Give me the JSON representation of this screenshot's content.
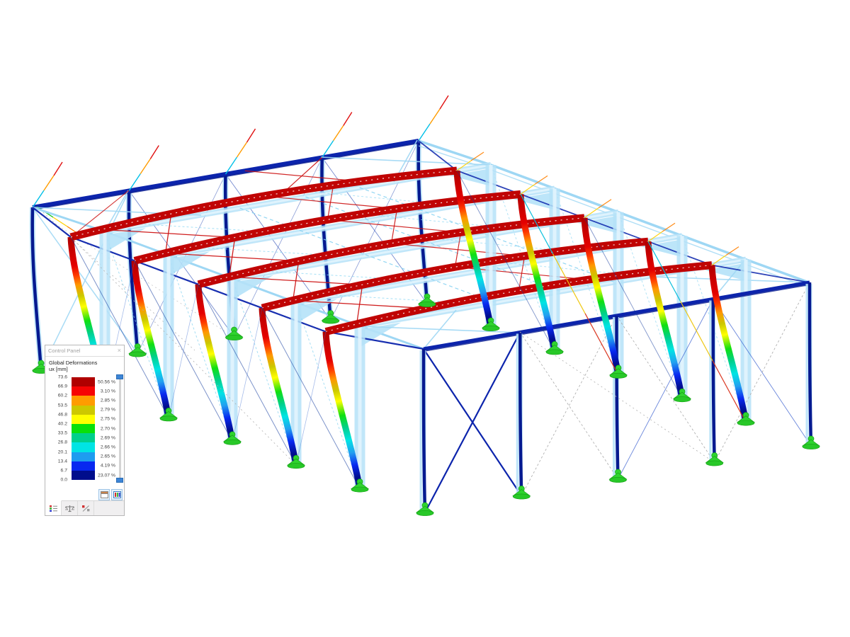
{
  "app": {
    "background": "#ffffff"
  },
  "control_panel": {
    "title": "Control Panel",
    "close_label": "×",
    "result_type": "Global Deformations",
    "result_component": "ux [mm]",
    "scale_values": [
      "73.6",
      "66.9",
      "60.2",
      "53.5",
      "46.8",
      "40.2",
      "33.5",
      "26.8",
      "20.1",
      "13.4",
      "6.7",
      "0.0"
    ],
    "band_percentages": [
      "50.56 %",
      "3.10 %",
      "2.85 %",
      "2.79 %",
      "2.75 %",
      "2.70 %",
      "2.69 %",
      "2.66 %",
      "2.65 %",
      "4.19 %",
      "23.07 %"
    ],
    "band_colors": [
      "#b00000",
      "#f60404",
      "#ff9c00",
      "#cdc800",
      "#ffff00",
      "#0ae00a",
      "#00d08c",
      "#00e4e4",
      "#1e9cf0",
      "#0828f0",
      "#000d8c"
    ]
  },
  "scene": {
    "support_color": "#2fd42f",
    "support_edge_color": "#14a014",
    "rafter_color": "#c00404",
    "roof_brace_color": "#cc1111",
    "ghost_color": "#b5e2f8",
    "ghost_inner_color": "#e2f4fd",
    "ghost_edge_color": "#9ed7f4",
    "frame_navy": "#0c24ac",
    "deep_navy": "#061a90"
  }
}
